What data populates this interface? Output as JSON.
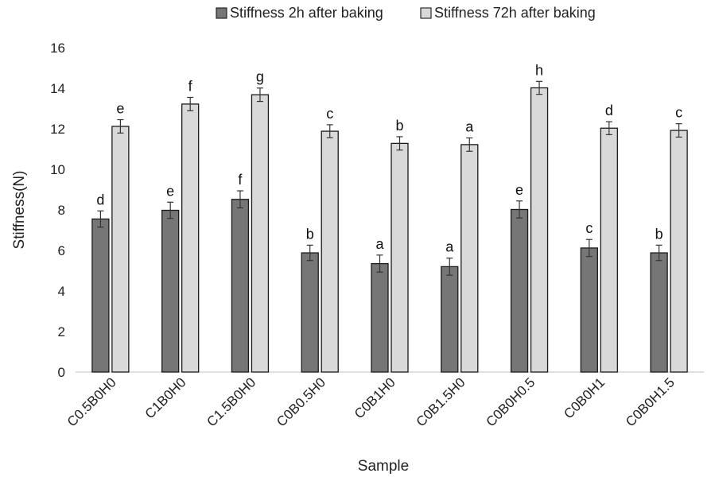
{
  "chart_data": {
    "type": "bar",
    "title": "",
    "xlabel": "Sample",
    "ylabel": "Stiffness(N)",
    "ylim": [
      0,
      16
    ],
    "yticks": [
      "0",
      "2",
      "4",
      "6",
      "8",
      "10",
      "12",
      "14",
      "16"
    ],
    "grid": false,
    "legend_position": "top",
    "categories": [
      "C0.5B0H0",
      "C1B0H0",
      "C1.5B0H0",
      "C0B0.5H0",
      "C0B1H0",
      "C0B1.5H0",
      "C0B0H0.5",
      "C0B0H1",
      "C0B0H1.5"
    ],
    "series": [
      {
        "name": "Stiffness 2h after baking",
        "color": "#767676",
        "values": [
          7.55,
          7.98,
          8.52,
          5.88,
          5.35,
          5.2,
          8.02,
          6.12,
          5.88
        ],
        "errors": [
          0.4,
          0.4,
          0.42,
          0.38,
          0.42,
          0.42,
          0.42,
          0.42,
          0.38
        ],
        "labels": [
          "d",
          "e",
          "f",
          "b",
          "a",
          "a",
          "e",
          "c",
          "b"
        ]
      },
      {
        "name": "Stiffness 72h after baking",
        "color": "#d9d9d9",
        "values": [
          12.12,
          13.22,
          13.68,
          11.88,
          11.28,
          11.22,
          14.02,
          12.03,
          11.92
        ],
        "errors": [
          0.33,
          0.33,
          0.33,
          0.32,
          0.33,
          0.33,
          0.32,
          0.32,
          0.33
        ],
        "labels": [
          "e",
          "f",
          "g",
          "c",
          "b",
          "a",
          "h",
          "d",
          "c"
        ]
      }
    ]
  }
}
